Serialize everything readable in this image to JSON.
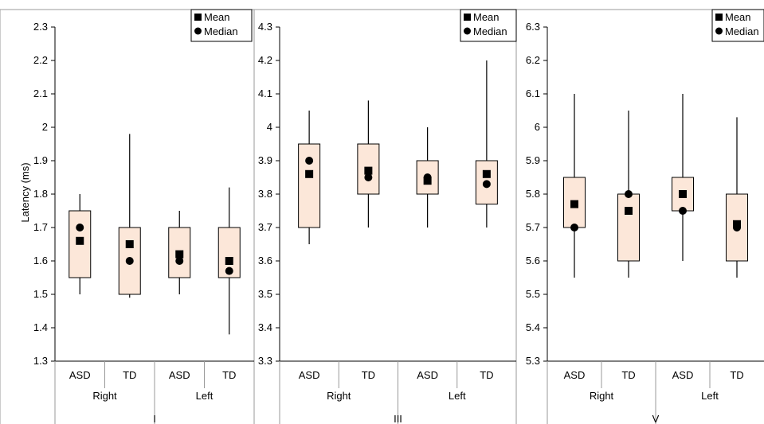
{
  "figure": {
    "ylabel": "Latency (ms)",
    "legend": {
      "position": "top-right",
      "mean_label": "Mean",
      "median_label": "Median"
    }
  },
  "colors": {
    "box_fill": "#fce7d9",
    "box_stroke": "#000000",
    "marker": "#000000",
    "frame": "#999999"
  },
  "chart_data": [
    {
      "type": "box",
      "panel_label": "I",
      "ylim": [
        1.3,
        2.3
      ],
      "yticks": [
        "1.3",
        "1.4",
        "1.5",
        "1.6",
        "1.7",
        "1.8",
        "1.9",
        "2",
        "2.1",
        "2.2",
        "2.3"
      ],
      "groups": [
        "Right",
        "Left"
      ],
      "categories": [
        "ASD",
        "TD",
        "ASD",
        "TD"
      ],
      "boxes": [
        {
          "group": "Right",
          "category": "ASD",
          "whisker_low": 1.5,
          "q1": 1.55,
          "q3": 1.75,
          "whisker_high": 1.8,
          "mean": 1.66,
          "median": 1.7
        },
        {
          "group": "Right",
          "category": "TD",
          "whisker_low": 1.49,
          "q1": 1.5,
          "q3": 1.7,
          "whisker_high": 1.98,
          "mean": 1.65,
          "median": 1.6
        },
        {
          "group": "Left",
          "category": "ASD",
          "whisker_low": 1.5,
          "q1": 1.55,
          "q3": 1.7,
          "whisker_high": 1.75,
          "mean": 1.62,
          "median": 1.6
        },
        {
          "group": "Left",
          "category": "TD",
          "whisker_low": 1.38,
          "q1": 1.55,
          "q3": 1.7,
          "whisker_high": 1.82,
          "mean": 1.6,
          "median": 1.57
        }
      ]
    },
    {
      "type": "box",
      "panel_label": "III",
      "ylim": [
        3.3,
        4.3
      ],
      "yticks": [
        "3.3",
        "3.4",
        "3.5",
        "3.6",
        "3.7",
        "3.8",
        "3.9",
        "4",
        "4.1",
        "4.2",
        "4.3"
      ],
      "groups": [
        "Right",
        "Left"
      ],
      "categories": [
        "ASD",
        "TD",
        "ASD",
        "TD"
      ],
      "boxes": [
        {
          "group": "Right",
          "category": "ASD",
          "whisker_low": 3.65,
          "q1": 3.7,
          "q3": 3.95,
          "whisker_high": 4.05,
          "mean": 3.86,
          "median": 3.9
        },
        {
          "group": "Right",
          "category": "TD",
          "whisker_low": 3.7,
          "q1": 3.8,
          "q3": 3.95,
          "whisker_high": 4.08,
          "mean": 3.87,
          "median": 3.85
        },
        {
          "group": "Left",
          "category": "ASD",
          "whisker_low": 3.7,
          "q1": 3.8,
          "q3": 3.9,
          "whisker_high": 4.0,
          "mean": 3.84,
          "median": 3.85
        },
        {
          "group": "Left",
          "category": "TD",
          "whisker_low": 3.7,
          "q1": 3.77,
          "q3": 3.9,
          "whisker_high": 4.2,
          "mean": 3.86,
          "median": 3.83
        }
      ]
    },
    {
      "type": "box",
      "panel_label": "V",
      "ylim": [
        5.3,
        6.3
      ],
      "yticks": [
        "5.3",
        "5.4",
        "5.5",
        "5.6",
        "5.7",
        "5.8",
        "5.9",
        "6",
        "6.1",
        "6.2",
        "6.3"
      ],
      "groups": [
        "Right",
        "Left"
      ],
      "categories": [
        "ASD",
        "TD",
        "ASD",
        "TD"
      ],
      "boxes": [
        {
          "group": "Right",
          "category": "ASD",
          "whisker_low": 5.55,
          "q1": 5.7,
          "q3": 5.85,
          "whisker_high": 6.1,
          "mean": 5.77,
          "median": 5.7
        },
        {
          "group": "Right",
          "category": "TD",
          "whisker_low": 5.55,
          "q1": 5.6,
          "q3": 5.8,
          "whisker_high": 6.05,
          "mean": 5.75,
          "median": 5.8
        },
        {
          "group": "Left",
          "category": "ASD",
          "whisker_low": 5.6,
          "q1": 5.75,
          "q3": 5.85,
          "whisker_high": 6.1,
          "mean": 5.8,
          "median": 5.75
        },
        {
          "group": "Left",
          "category": "TD",
          "whisker_low": 5.55,
          "q1": 5.6,
          "q3": 5.8,
          "whisker_high": 6.03,
          "mean": 5.71,
          "median": 5.7
        }
      ]
    }
  ]
}
